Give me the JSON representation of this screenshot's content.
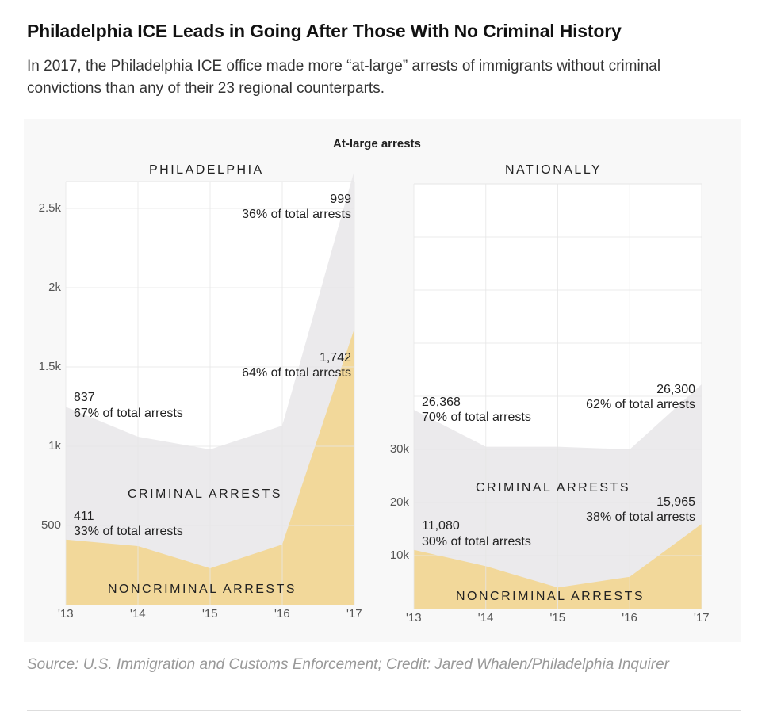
{
  "title": "Philadelphia ICE Leads in Going After Those With No Criminal History",
  "subtitle": "In 2017, the Philadelphia ICE office made more “at-large” arrests of immigrants without criminal convictions than any of their 23 regional counterparts.",
  "source": "Source: U.S. Immigration and Customs Enforcement; Credit: Jared Whalen/Philadelphia Inquirer",
  "colors": {
    "noncriminal": "#f2d89a",
    "criminal": "#ebeaec",
    "grid": "#e6e6e6"
  },
  "chart_data": [
    {
      "type": "area",
      "title": "At-large arrests",
      "subtitle": "PHILADELPHIA",
      "categories": [
        "'13",
        "'14",
        "'15",
        "'16",
        "'17"
      ],
      "series": [
        {
          "name": "NONCRIMINAL ARRESTS",
          "values": [
            411,
            370,
            230,
            380,
            1742
          ]
        },
        {
          "name": "CRIMINAL ARRESTS",
          "values": [
            837,
            690,
            750,
            750,
            999
          ]
        }
      ],
      "yticks": [
        "500",
        "1k",
        "1.5k",
        "2k",
        "2.5k"
      ],
      "ytick_values": [
        500,
        1000,
        1500,
        2000,
        2500
      ],
      "ylim": [
        0,
        2670
      ],
      "annotations": {
        "crim13_value": "837",
        "crim13_pct": "67% of total arrests",
        "non13_value": "411",
        "non13_pct": "33% of total arrests",
        "crim17_value": "999",
        "crim17_pct": "36% of total arrests",
        "non17_value": "1,742",
        "non17_pct": "64% of total arrests"
      }
    },
    {
      "type": "area",
      "subtitle": "NATIONALLY",
      "categories": [
        "'13",
        "'14",
        "'15",
        "'16",
        "'17"
      ],
      "series": [
        {
          "name": "NONCRIMINAL ARRESTS",
          "values": [
            11080,
            8000,
            4000,
            6000,
            15965
          ]
        },
        {
          "name": "CRIMINAL ARRESTS",
          "values": [
            26368,
            22500,
            26500,
            24000,
            26300
          ]
        }
      ],
      "yticks": [
        "10k",
        "20k",
        "30k"
      ],
      "ytick_values": [
        10000,
        20000,
        30000
      ],
      "ylim": [
        0,
        80000
      ],
      "annotations": {
        "crim13_value": "26,368",
        "crim13_pct": "70% of total arrests",
        "non13_value": "11,080",
        "non13_pct": "30% of total arrests",
        "crim17_value": "26,300",
        "crim17_pct": "62% of total arrests",
        "non17_value": "15,965",
        "non17_pct": "38% of total arrests"
      }
    }
  ]
}
